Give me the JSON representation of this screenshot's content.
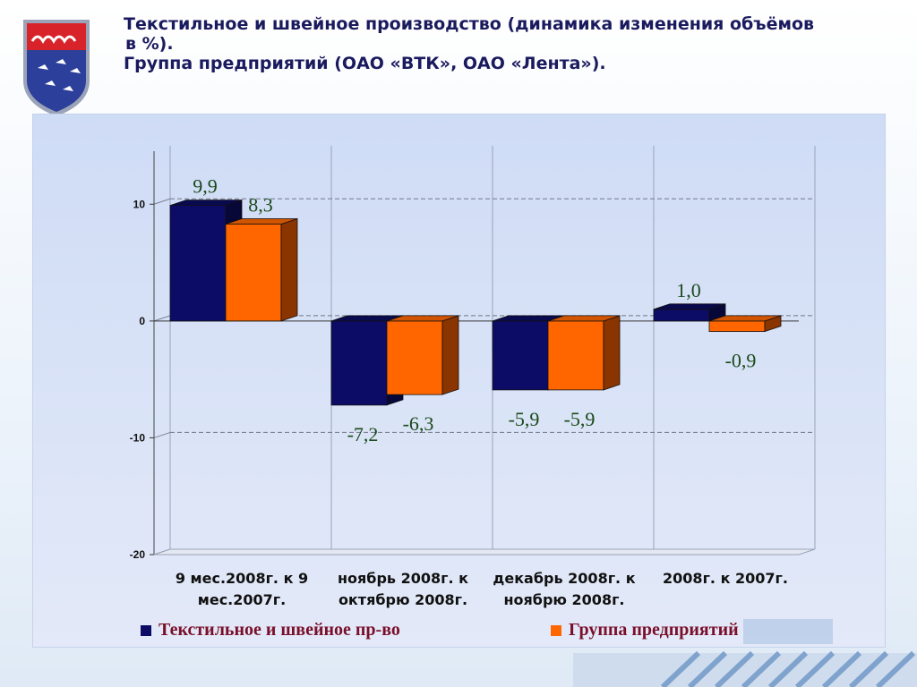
{
  "title": {
    "line1": "Текстильное и швейное производство (динамика изменения объёмов",
    "line2": "в %).",
    "line3": "Группа предприятий (ОАО «ВТК», ОАО «Лента»)."
  },
  "colors": {
    "series1": "#0c0c66",
    "series2": "#ff6600",
    "series2_side": "#8a3400",
    "panel": "#d7e1f7",
    "value_label": "#1a4a1a",
    "legend_text": "#7a0f2a"
  },
  "chart_data": {
    "type": "bar",
    "title": "",
    "xlabel": "",
    "ylabel": "",
    "ylim": [
      -20,
      15
    ],
    "yticks": [
      -20,
      -10,
      0,
      10
    ],
    "grid": true,
    "legend_position": "bottom",
    "categories": [
      [
        "9 мес.2008г. к 9",
        "мес.2007г."
      ],
      [
        "ноябрь 2008г. к",
        "октябрю 2008г."
      ],
      [
        "декабрь 2008г. к",
        "ноябрю 2008г."
      ],
      [
        "2008г. к 2007г."
      ]
    ],
    "series": [
      {
        "name": "Текстильное и швейное пр-во",
        "values": [
          9.9,
          -7.2,
          -5.9,
          1.0
        ],
        "labels": [
          "9,9",
          "-7,2",
          "-5,9",
          "1,0"
        ]
      },
      {
        "name": "Группа предприятий",
        "values": [
          8.3,
          -6.3,
          -5.9,
          -0.9
        ],
        "labels": [
          "8,3",
          "-6,3",
          "-5,9",
          "-0,9"
        ]
      }
    ]
  }
}
